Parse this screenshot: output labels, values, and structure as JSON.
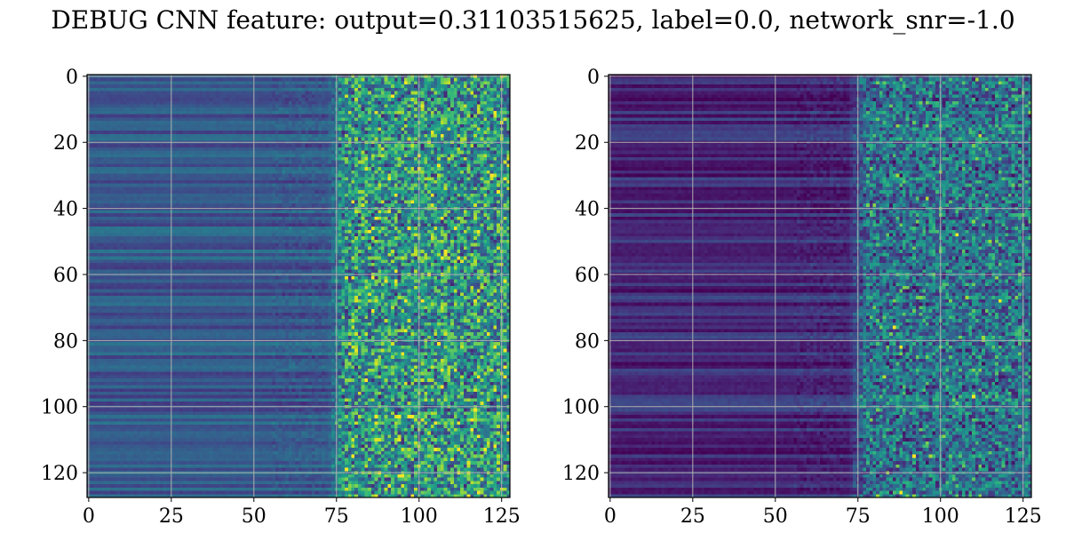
{
  "title": "DEBUG CNN feature: output=0.31103515625, label=0.0, network_snr=-1.0",
  "chart_data": [
    {
      "type": "heatmap",
      "colormap": "viridis",
      "rows": 128,
      "cols": 128,
      "xlim": [
        0,
        127
      ],
      "ylim": [
        127,
        0
      ],
      "grid": true,
      "xticks": [
        0,
        25,
        50,
        75,
        100,
        125
      ],
      "yticks": [
        0,
        20,
        40,
        60,
        80,
        100,
        120
      ],
      "value_range": [
        0,
        1
      ],
      "structure": {
        "low_region_cols": [
          0,
          72
        ],
        "high_variance_cols": [
          75,
          127
        ],
        "low_level": 0.28,
        "noise_level": 0.42,
        "hotspots": [
          [
            96,
            2
          ],
          [
            87,
            43
          ],
          [
            104,
            36
          ],
          [
            86,
            61
          ],
          [
            98,
            103
          ],
          [
            87,
            103
          ],
          [
            96,
            68
          ]
        ]
      }
    },
    {
      "type": "heatmap",
      "colormap": "viridis",
      "rows": 128,
      "cols": 128,
      "xlim": [
        0,
        127
      ],
      "ylim": [
        127,
        0
      ],
      "grid": true,
      "xticks": [
        0,
        25,
        50,
        75,
        100,
        125
      ],
      "yticks": [
        0,
        20,
        40,
        60,
        80,
        100,
        120
      ],
      "value_range": [
        0,
        1
      ],
      "structure": {
        "low_region_cols": [
          0,
          72
        ],
        "high_variance_cols": [
          75,
          127
        ],
        "low_level": 0.12,
        "noise_level": 0.32,
        "hotspots": [
          [
            118,
            68
          ],
          [
            110,
            97
          ],
          [
            92,
            115
          ],
          [
            105,
            48
          ],
          [
            88,
            82
          ],
          [
            86,
            76
          ],
          [
            88,
            126
          ]
        ]
      }
    }
  ]
}
